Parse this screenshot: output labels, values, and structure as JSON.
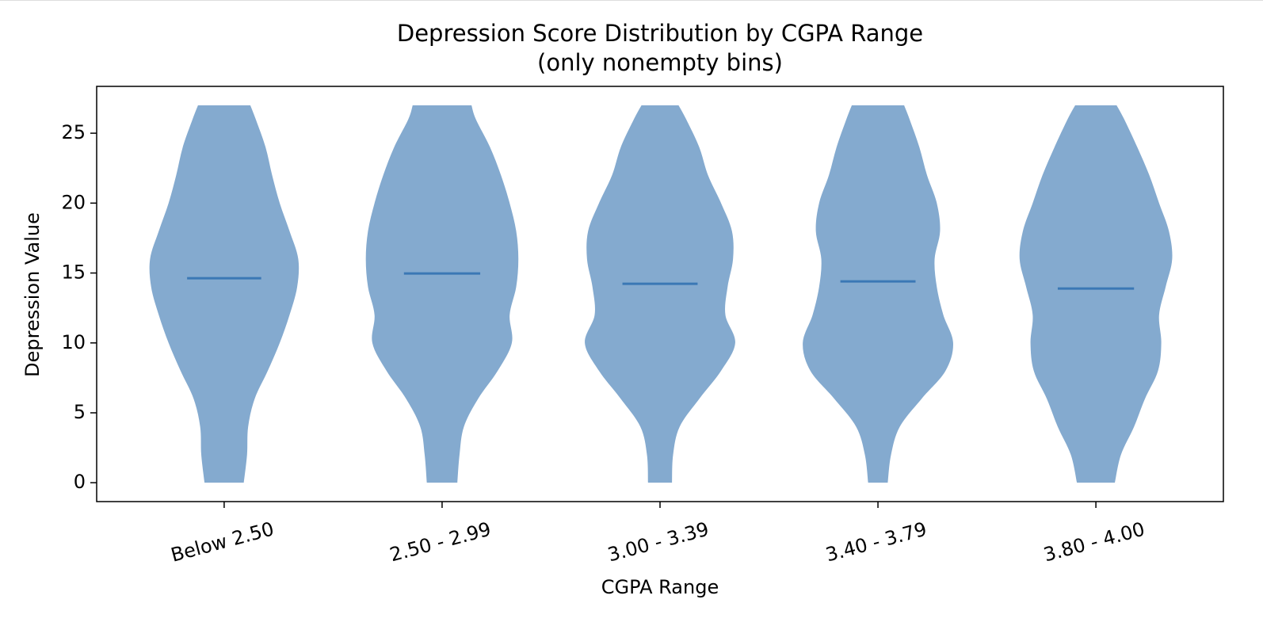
{
  "chart_data": {
    "type": "violin",
    "title": "Depression Score Distribution by CGPA Range",
    "subtitle": "(only nonempty bins)",
    "x_label": "CGPA Range",
    "y_label": "Depression Value",
    "categories": [
      "Below 2.50",
      "2.50 - 2.99",
      "3.00 - 3.39",
      "3.40 - 3.79",
      "3.80 - 4.00"
    ],
    "color": "#84aacf",
    "mean_color": "#3b78b5",
    "ylim": [
      -1.35,
      28.35
    ],
    "yticks": [
      0,
      5,
      10,
      15,
      20,
      25
    ],
    "xlim": [
      -0.585,
      4.585
    ],
    "profile_y": [
      0,
      2,
      4,
      6,
      8,
      10,
      12,
      14,
      16,
      18,
      20,
      22,
      24,
      26,
      27
    ],
    "violins": [
      {
        "mean": 14.63,
        "widths": [
          0.09,
          0.105,
          0.11,
          0.14,
          0.2,
          0.255,
          0.3,
          0.335,
          0.34,
          0.3,
          0.255,
          0.22,
          0.19,
          0.145,
          0.12
        ]
      },
      {
        "mean": 14.97,
        "widths": [
          0.07,
          0.08,
          0.1,
          0.165,
          0.255,
          0.32,
          0.31,
          0.34,
          0.35,
          0.34,
          0.31,
          0.27,
          0.22,
          0.155,
          0.135
        ]
      },
      {
        "mean": 14.23,
        "widths": [
          0.055,
          0.06,
          0.09,
          0.18,
          0.28,
          0.345,
          0.3,
          0.31,
          0.335,
          0.33,
          0.28,
          0.22,
          0.18,
          0.12,
          0.085
        ]
      },
      {
        "mean": 14.4,
        "widths": [
          0.045,
          0.06,
          0.1,
          0.2,
          0.31,
          0.345,
          0.3,
          0.27,
          0.26,
          0.285,
          0.27,
          0.225,
          0.19,
          0.145,
          0.12
        ]
      },
      {
        "mean": 13.89,
        "widths": [
          0.087,
          0.115,
          0.175,
          0.225,
          0.285,
          0.3,
          0.29,
          0.32,
          0.35,
          0.335,
          0.29,
          0.245,
          0.19,
          0.13,
          0.095
        ]
      }
    ]
  }
}
